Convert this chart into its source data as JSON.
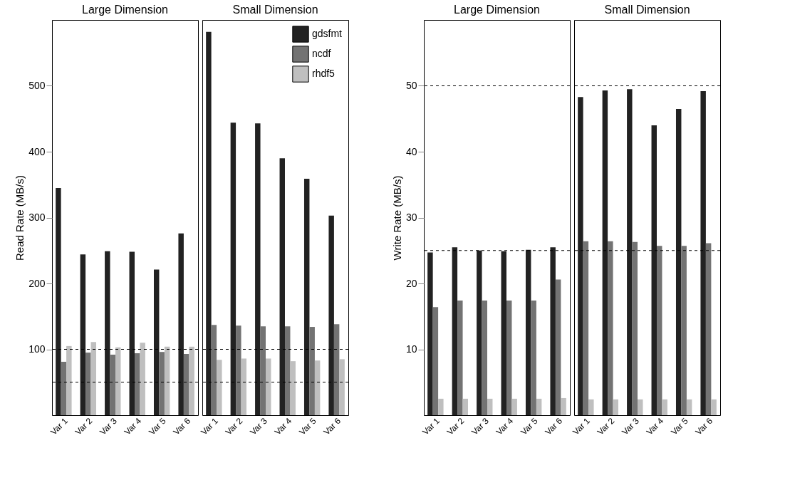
{
  "chart_data": [
    {
      "type": "bar",
      "title": "Large Dimension",
      "ylabel": "Read Rate (MB/s)",
      "categories": [
        "Var 1",
        "Var 2",
        "Var 3",
        "Var 4",
        "Var 5",
        "Var 6"
      ],
      "series": [
        {
          "color": "#222222",
          "values": [
            345,
            244,
            249,
            248,
            221,
            276
          ]
        },
        {
          "color": "#737373",
          "values": [
            81,
            95,
            92,
            94,
            96,
            93
          ]
        },
        {
          "color": "#bfbfbf",
          "values": [
            105,
            111,
            103,
            110,
            104,
            104
          ]
        }
      ],
      "ylim": [
        0,
        600
      ],
      "yticks": [
        100,
        200,
        300,
        400,
        500
      ],
      "ref_lines": [
        {
          "axis": "y",
          "value": 100,
          "line_style": "dashed"
        },
        {
          "axis": "y",
          "value": 50,
          "line_style": "dashed"
        }
      ]
    },
    {
      "type": "bar",
      "title": "Small Dimension",
      "categories": [
        "Var 1",
        "Var 2",
        "Var 3",
        "Var 4",
        "Var 5",
        "Var 6"
      ],
      "series": [
        {
          "name": "gdsfmt",
          "color": "#222222",
          "values": [
            582,
            444,
            443,
            390,
            359,
            303
          ]
        },
        {
          "name": "ncdf",
          "color": "#737373",
          "values": [
            137,
            136,
            135,
            135,
            134,
            138
          ]
        },
        {
          "name": "rhdf5",
          "color": "#bfbfbf",
          "values": [
            84,
            86,
            86,
            82,
            83,
            85
          ]
        }
      ],
      "ylim": [
        0,
        600
      ],
      "yticks": [
        100,
        200,
        300,
        400,
        500
      ],
      "tick_labels": "x",
      "legend": "top right",
      "ref_lines": [
        {
          "axis": "y",
          "value": 100,
          "line_style": "dashed"
        },
        {
          "axis": "y",
          "value": 50,
          "line_style": "dashed"
        }
      ]
    },
    {
      "type": "bar",
      "title": "Large Dimension",
      "ylabel": "Write Rate (MB/s)",
      "categories": [
        "Var 1",
        "Var 2",
        "Var 3",
        "Var 4",
        "Var 5",
        "Var 6"
      ],
      "series": [
        {
          "color": "#222222",
          "values": [
            24.7,
            25.5,
            25.0,
            24.9,
            25.1,
            25.5
          ]
        },
        {
          "color": "#737373",
          "values": [
            16.4,
            17.4,
            17.4,
            17.4,
            17.4,
            20.6
          ]
        },
        {
          "color": "#bfbfbf",
          "values": [
            2.5,
            2.5,
            2.5,
            2.5,
            2.5,
            2.6
          ]
        }
      ],
      "ylim": [
        0,
        60
      ],
      "yticks": [
        10,
        20,
        30,
        40,
        50
      ],
      "ref_lines": [
        {
          "axis": "y",
          "value": 50,
          "line_style": "dashed"
        },
        {
          "axis": "y",
          "value": 25,
          "line_style": "dashed"
        }
      ]
    },
    {
      "type": "bar",
      "title": "Small Dimension",
      "categories": [
        "Var 1",
        "Var 2",
        "Var 3",
        "Var 4",
        "Var 5",
        "Var 6"
      ],
      "series": [
        {
          "color": "#222222",
          "values": [
            48.3,
            49.3,
            49.5,
            44.0,
            46.5,
            49.2
          ]
        },
        {
          "color": "#737373",
          "values": [
            26.4,
            26.4,
            26.3,
            25.7,
            25.7,
            26.1
          ]
        },
        {
          "color": "#bfbfbf",
          "values": [
            2.4,
            2.4,
            2.4,
            2.4,
            2.4,
            2.4
          ]
        }
      ],
      "ylim": [
        0,
        60
      ],
      "yticks": [
        10,
        20,
        30,
        40,
        50
      ],
      "tick_labels": "x",
      "ref_lines": [
        {
          "axis": "y",
          "value": 50,
          "line_style": "dashed"
        },
        {
          "axis": "y",
          "value": 25,
          "line_style": "dashed"
        }
      ]
    }
  ]
}
